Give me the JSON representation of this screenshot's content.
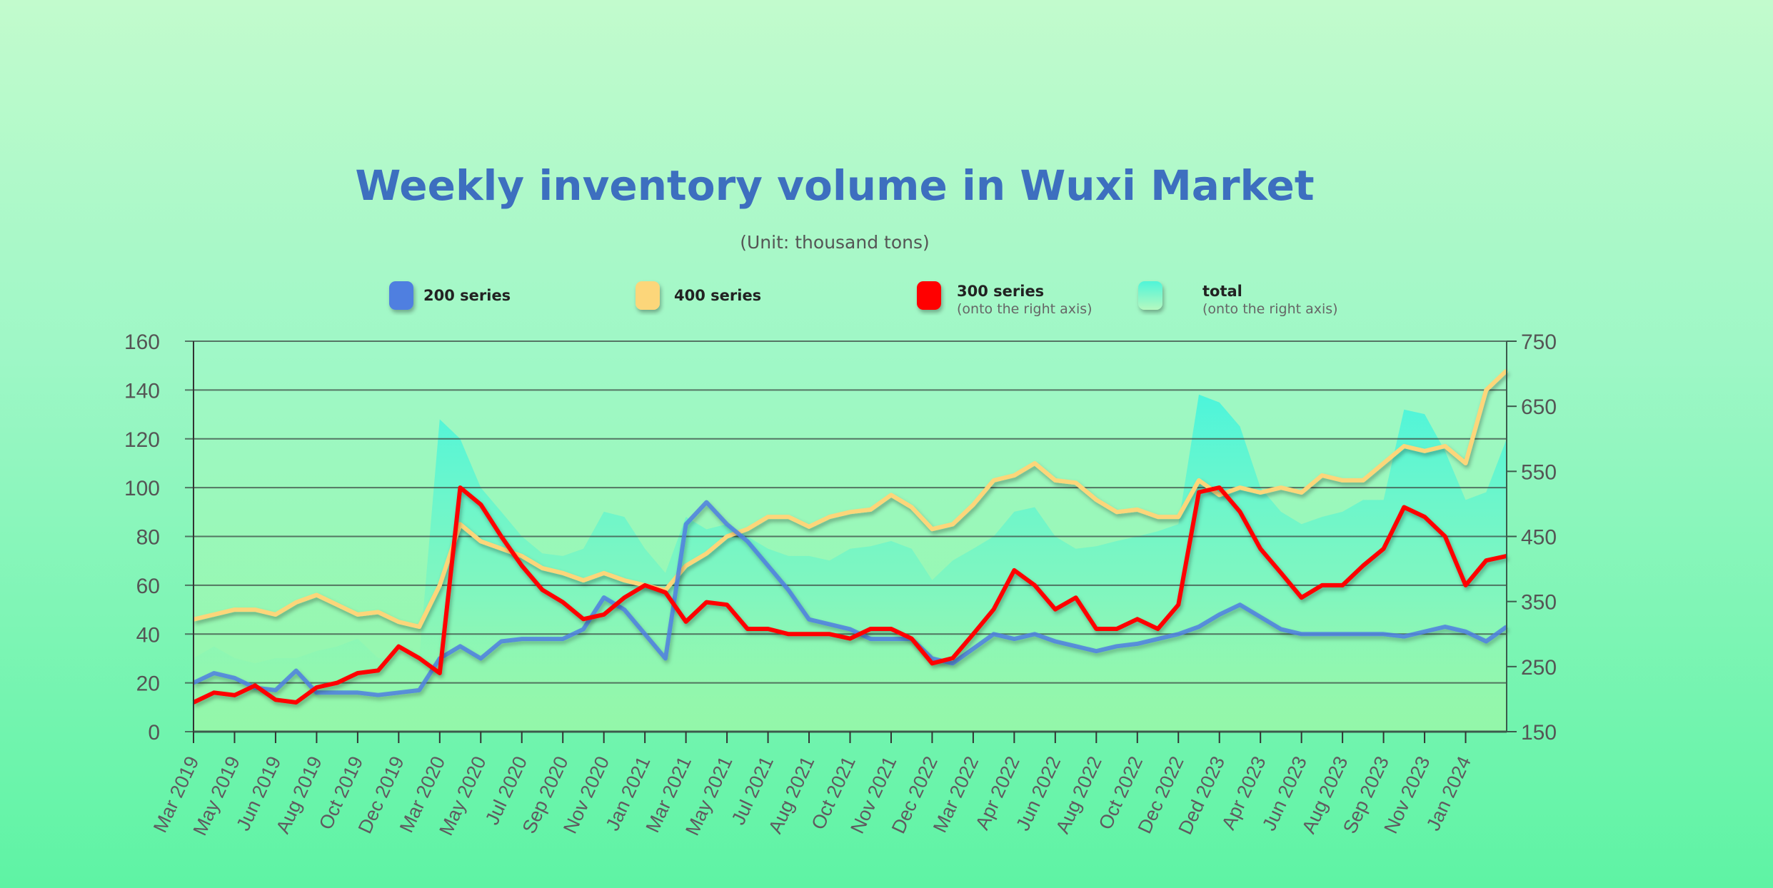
{
  "chart_data": {
    "type": "line",
    "title": "Weekly inventory volume in Wuxi Market",
    "subtitle": "(Unit: thousand tons)",
    "left_axis": {
      "ylim": [
        0,
        160
      ],
      "ticks": [
        "0",
        "20",
        "40",
        "60",
        "80",
        "100",
        "120",
        "140",
        "160"
      ]
    },
    "right_axis": {
      "ylim": [
        150,
        750
      ],
      "ticks": [
        "150",
        "250",
        "350",
        "450",
        "550",
        "650",
        "750"
      ]
    },
    "grid": true,
    "legend_position": "top",
    "x_tick_labels": [
      "Mar 2019",
      "May 2019",
      "Jun 2019",
      "Aug 2019",
      "Oct 2019",
      "Dec 2019",
      "Mar 2020",
      "May 2020",
      "Jul 2020",
      "Sep 2020",
      "Nov 2020",
      "Jan 2021",
      "Mar 2021",
      "May 2021",
      "Jul 2021",
      "Aug 2021",
      "Oct 2021",
      "Nov 2021",
      "Dec 2022",
      "Mar 2022",
      "Apr 2022",
      "Jun 2022",
      "Aug 2022",
      "Oct 2022",
      "Dec 2022",
      "Ded 2023",
      "Apr 2023",
      "Jun 2023",
      "Aug 2023",
      "Sep 2023",
      "Nov 2023",
      "Jan 2024"
    ],
    "series": [
      {
        "name": "200 series",
        "sublabel": "",
        "axis": "left",
        "color": "#4f7fe0",
        "kind": "line",
        "values": [
          20,
          24,
          22,
          18,
          17,
          25,
          16,
          16,
          16,
          15,
          16,
          17,
          30,
          35,
          30,
          37,
          38,
          38,
          38,
          42,
          55,
          50,
          40,
          30,
          85,
          94,
          85,
          78,
          68,
          58,
          46,
          44,
          42,
          38,
          38,
          38,
          30,
          28,
          34,
          40,
          38,
          40,
          37,
          35,
          33,
          35,
          36,
          38,
          40,
          43,
          48,
          52,
          47,
          42,
          40,
          40,
          40,
          40,
          40,
          39,
          41,
          43,
          41,
          37,
          43
        ]
      },
      {
        "name": "400 series",
        "sublabel": "",
        "axis": "left",
        "color": "#fcd67a",
        "kind": "line",
        "values": [
          46,
          48,
          50,
          50,
          48,
          53,
          56,
          52,
          48,
          49,
          45,
          43,
          60,
          85,
          78,
          75,
          72,
          67,
          65,
          62,
          65,
          62,
          60,
          58,
          68,
          73,
          80,
          83,
          88,
          88,
          84,
          88,
          90,
          91,
          97,
          92,
          83,
          85,
          93,
          103,
          105,
          110,
          103,
          102,
          95,
          90,
          91,
          88,
          88,
          103,
          97,
          100,
          98,
          100,
          98,
          105,
          103,
          103,
          110,
          117,
          115,
          117,
          110,
          140,
          148
        ]
      },
      {
        "name": "300 series",
        "sublabel": "(onto the right axis)",
        "axis": "right",
        "color": "#ff0000",
        "kind": "line",
        "values": [
          195,
          210,
          206,
          221,
          199,
          195,
          218,
          225,
          240,
          244,
          281,
          263,
          240,
          525,
          499,
          450,
          405,
          368,
          349,
          323,
          330,
          356,
          375,
          364,
          319,
          349,
          345,
          308,
          308,
          300,
          300,
          300,
          293,
          308,
          308,
          293,
          255,
          263,
          300,
          338,
          398,
          375,
          338,
          356,
          308,
          308,
          323,
          308,
          345,
          518,
          525,
          488,
          431,
          394,
          356,
          375,
          375,
          405,
          431,
          495,
          480,
          450,
          375,
          413,
          420
        ]
      },
      {
        "name": "total",
        "sublabel": "(onto the right axis)",
        "axis": "right",
        "color": "#4ff5d8",
        "kind": "area",
        "values": [
          263,
          281,
          263,
          255,
          263,
          263,
          274,
          281,
          293,
          263,
          263,
          263,
          630,
          600,
          525,
          488,
          450,
          424,
          420,
          431,
          488,
          480,
          431,
          394,
          480,
          461,
          469,
          450,
          431,
          420,
          420,
          413,
          431,
          435,
          443,
          431,
          383,
          413,
          431,
          450,
          488,
          495,
          450,
          431,
          435,
          443,
          450,
          458,
          469,
          668,
          656,
          619,
          525,
          488,
          469,
          480,
          488,
          506,
          506,
          645,
          638,
          581,
          506,
          518,
          600
        ]
      }
    ]
  }
}
